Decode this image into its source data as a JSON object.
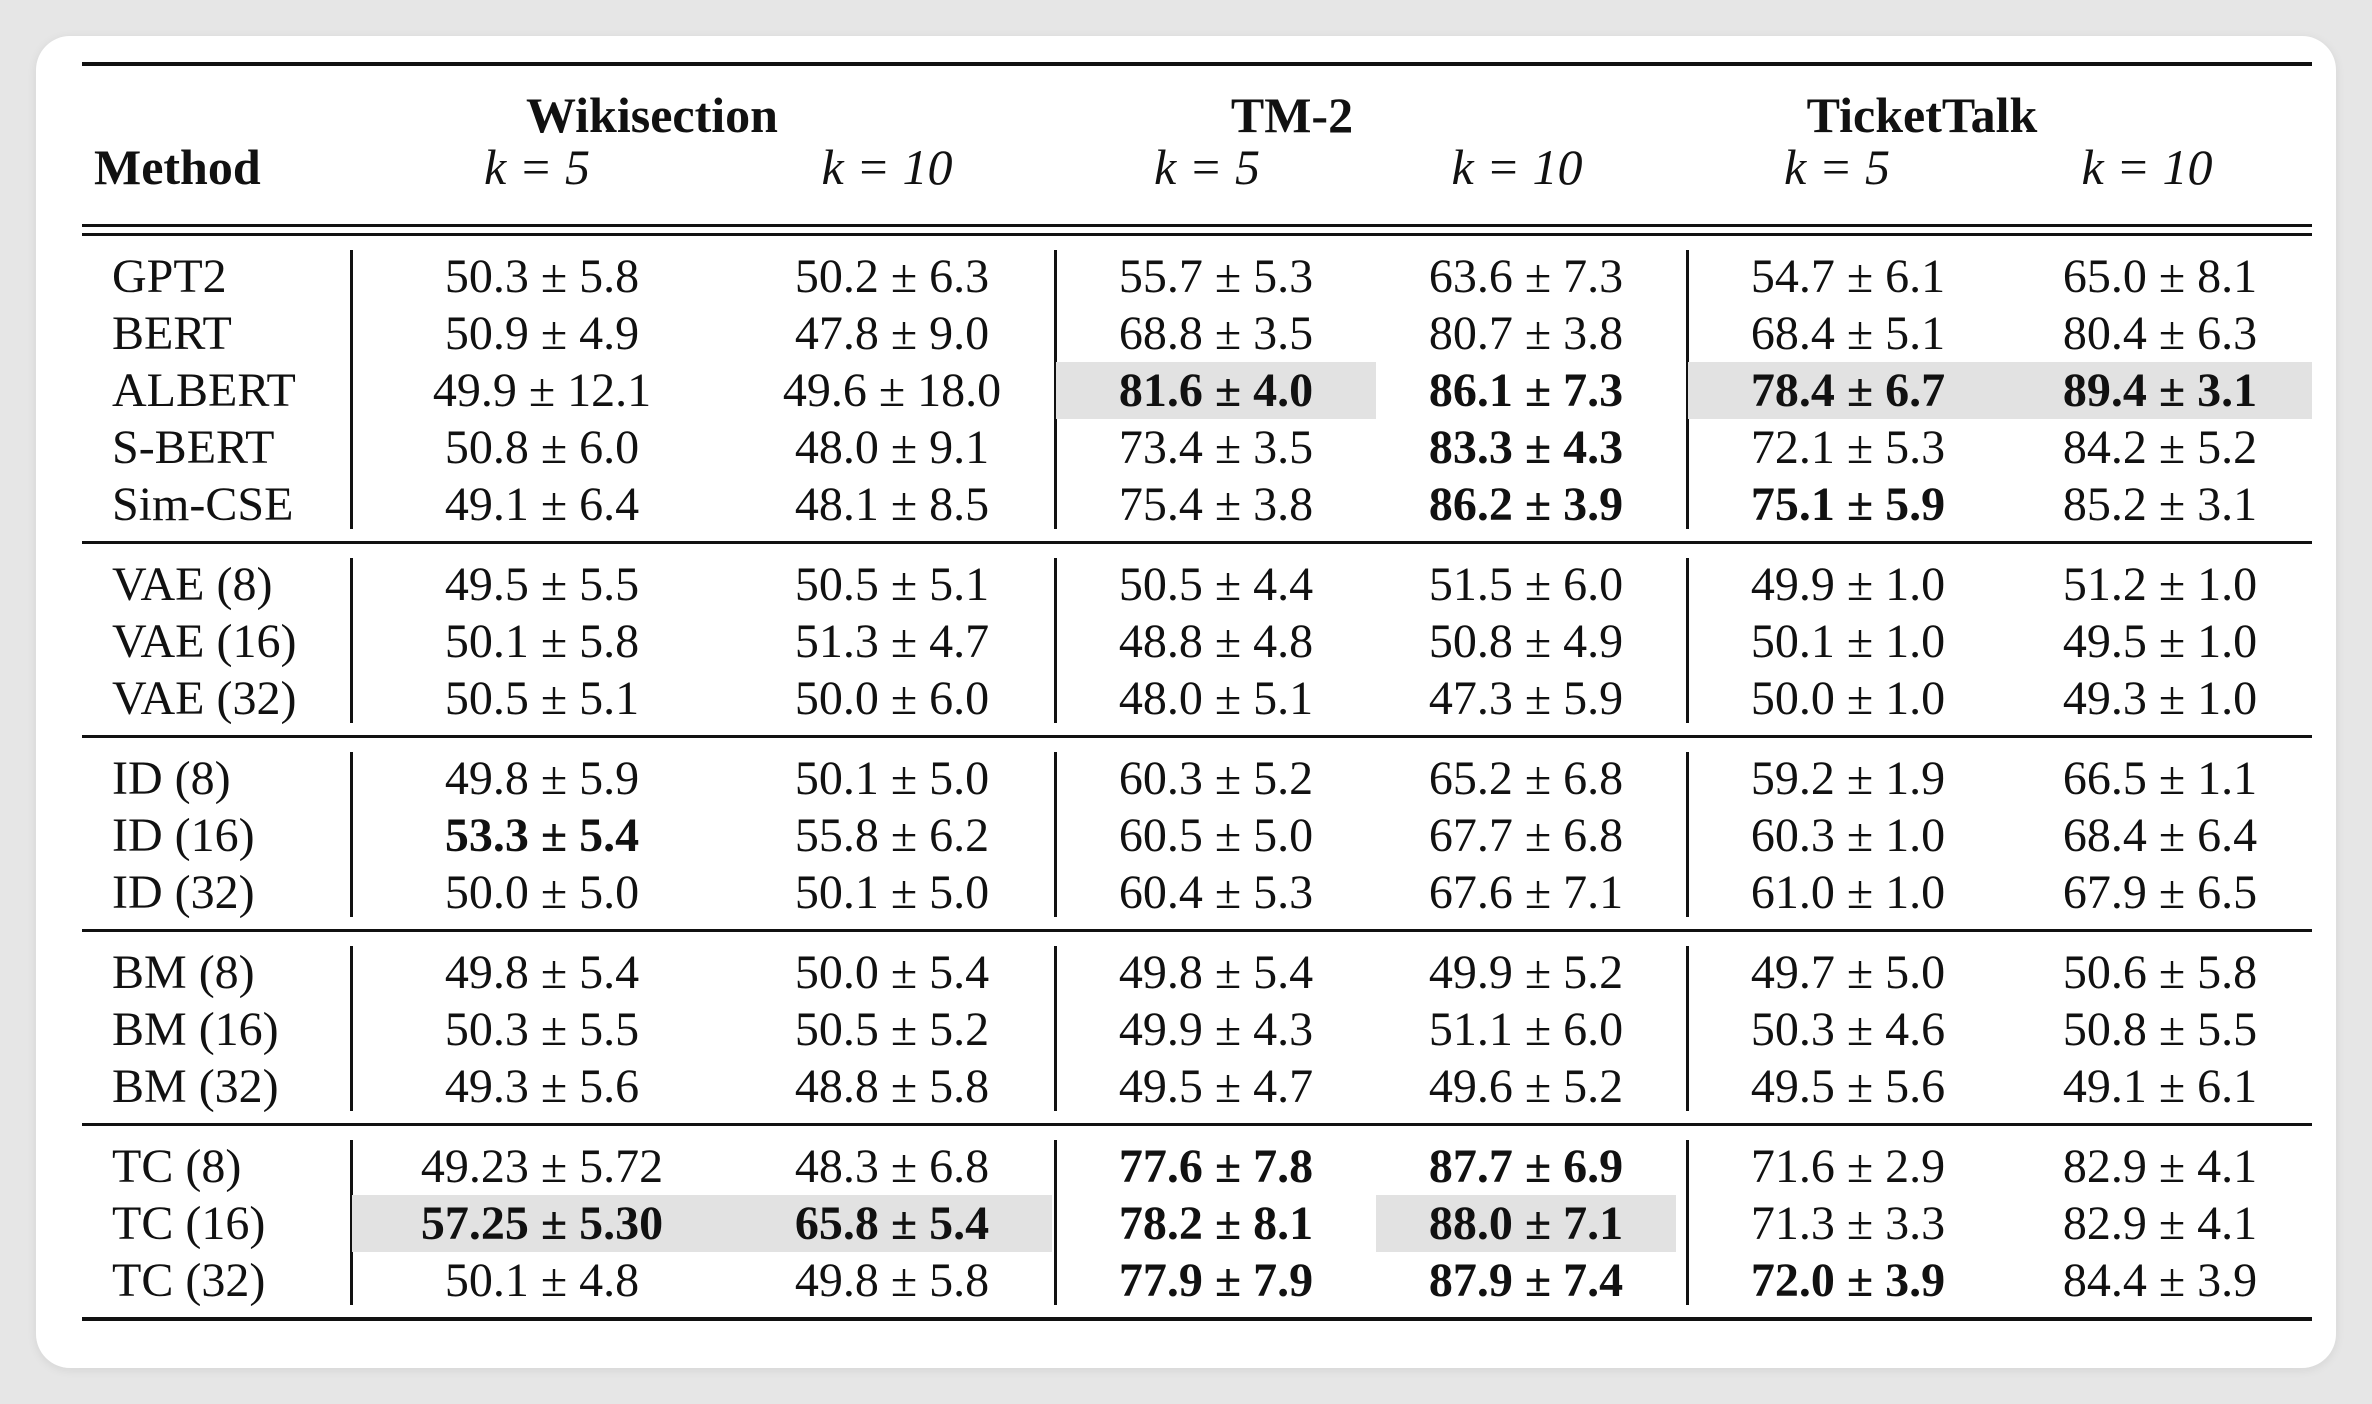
{
  "header": {
    "method_label": "Method",
    "datasets": [
      "Wikisection",
      "TM-2",
      "TicketTalk"
    ],
    "k_labels": [
      "k = 5",
      "k = 10",
      "k = 5",
      "k = 10",
      "k = 5",
      "k = 10"
    ]
  },
  "groups": [
    {
      "rows": [
        {
          "method": "GPT2",
          "cells": [
            {
              "v": "50.3 ± 5.8",
              "b": false,
              "hl": false
            },
            {
              "v": "50.2 ± 6.3",
              "b": false,
              "hl": false
            },
            {
              "v": "55.7 ± 5.3",
              "b": false,
              "hl": false
            },
            {
              "v": "63.6 ± 7.3",
              "b": false,
              "hl": false
            },
            {
              "v": "54.7 ± 6.1",
              "b": false,
              "hl": false
            },
            {
              "v": "65.0 ± 8.1",
              "b": false,
              "hl": false
            }
          ]
        },
        {
          "method": "BERT",
          "cells": [
            {
              "v": "50.9 ± 4.9",
              "b": false,
              "hl": false
            },
            {
              "v": "47.8 ± 9.0",
              "b": false,
              "hl": false
            },
            {
              "v": "68.8 ± 3.5",
              "b": false,
              "hl": false
            },
            {
              "v": "80.7 ± 3.8",
              "b": false,
              "hl": false
            },
            {
              "v": "68.4 ± 5.1",
              "b": false,
              "hl": false
            },
            {
              "v": "80.4 ± 6.3",
              "b": false,
              "hl": false
            }
          ]
        },
        {
          "method": "ALBERT",
          "cells": [
            {
              "v": "49.9 ± 12.1",
              "b": false,
              "hl": false
            },
            {
              "v": "49.6 ± 18.0",
              "b": false,
              "hl": false
            },
            {
              "v": "81.6 ± 4.0",
              "b": true,
              "hl": true
            },
            {
              "v": "86.1 ± 7.3",
              "b": true,
              "hl": false
            },
            {
              "v": "78.4 ± 6.7",
              "b": true,
              "hl": true
            },
            {
              "v": "89.4 ± 3.1",
              "b": true,
              "hl": true
            }
          ]
        },
        {
          "method": "S-BERT",
          "cells": [
            {
              "v": "50.8 ± 6.0",
              "b": false,
              "hl": false
            },
            {
              "v": "48.0 ± 9.1",
              "b": false,
              "hl": false
            },
            {
              "v": "73.4 ± 3.5",
              "b": false,
              "hl": false
            },
            {
              "v": "83.3 ± 4.3",
              "b": true,
              "hl": false
            },
            {
              "v": "72.1 ± 5.3",
              "b": false,
              "hl": false
            },
            {
              "v": "84.2 ± 5.2",
              "b": false,
              "hl": false
            }
          ]
        },
        {
          "method": "Sim-CSE",
          "cells": [
            {
              "v": "49.1 ± 6.4",
              "b": false,
              "hl": false
            },
            {
              "v": "48.1 ± 8.5",
              "b": false,
              "hl": false
            },
            {
              "v": "75.4 ± 3.8",
              "b": false,
              "hl": false
            },
            {
              "v": "86.2 ± 3.9",
              "b": true,
              "hl": false
            },
            {
              "v": "75.1 ± 5.9",
              "b": true,
              "hl": false
            },
            {
              "v": "85.2 ± 3.1",
              "b": false,
              "hl": false
            }
          ]
        }
      ]
    },
    {
      "rows": [
        {
          "method": "VAE (8)",
          "cells": [
            {
              "v": "49.5 ± 5.5",
              "b": false,
              "hl": false
            },
            {
              "v": "50.5 ± 5.1",
              "b": false,
              "hl": false
            },
            {
              "v": "50.5 ± 4.4",
              "b": false,
              "hl": false
            },
            {
              "v": "51.5 ± 6.0",
              "b": false,
              "hl": false
            },
            {
              "v": "49.9 ± 1.0",
              "b": false,
              "hl": false
            },
            {
              "v": "51.2 ± 1.0",
              "b": false,
              "hl": false
            }
          ]
        },
        {
          "method": "VAE (16)",
          "cells": [
            {
              "v": "50.1 ± 5.8",
              "b": false,
              "hl": false
            },
            {
              "v": "51.3 ± 4.7",
              "b": false,
              "hl": false
            },
            {
              "v": "48.8 ± 4.8",
              "b": false,
              "hl": false
            },
            {
              "v": "50.8 ± 4.9",
              "b": false,
              "hl": false
            },
            {
              "v": "50.1 ± 1.0",
              "b": false,
              "hl": false
            },
            {
              "v": "49.5 ± 1.0",
              "b": false,
              "hl": false
            }
          ]
        },
        {
          "method": "VAE (32)",
          "cells": [
            {
              "v": "50.5 ± 5.1",
              "b": false,
              "hl": false
            },
            {
              "v": "50.0 ± 6.0",
              "b": false,
              "hl": false
            },
            {
              "v": "48.0 ± 5.1",
              "b": false,
              "hl": false
            },
            {
              "v": "47.3 ± 5.9",
              "b": false,
              "hl": false
            },
            {
              "v": "50.0 ± 1.0",
              "b": false,
              "hl": false
            },
            {
              "v": "49.3 ± 1.0",
              "b": false,
              "hl": false
            }
          ]
        }
      ]
    },
    {
      "rows": [
        {
          "method": "ID (8)",
          "cells": [
            {
              "v": "49.8 ± 5.9",
              "b": false,
              "hl": false
            },
            {
              "v": "50.1 ± 5.0",
              "b": false,
              "hl": false
            },
            {
              "v": "60.3 ± 5.2",
              "b": false,
              "hl": false
            },
            {
              "v": "65.2 ± 6.8",
              "b": false,
              "hl": false
            },
            {
              "v": "59.2 ± 1.9",
              "b": false,
              "hl": false
            },
            {
              "v": "66.5 ± 1.1",
              "b": false,
              "hl": false
            }
          ]
        },
        {
          "method": "ID (16)",
          "cells": [
            {
              "v": "53.3 ± 5.4",
              "b": true,
              "hl": false
            },
            {
              "v": "55.8 ± 6.2",
              "b": false,
              "hl": false
            },
            {
              "v": "60.5 ± 5.0",
              "b": false,
              "hl": false
            },
            {
              "v": "67.7 ± 6.8",
              "b": false,
              "hl": false
            },
            {
              "v": "60.3 ± 1.0",
              "b": false,
              "hl": false
            },
            {
              "v": "68.4 ± 6.4",
              "b": false,
              "hl": false
            }
          ]
        },
        {
          "method": "ID (32)",
          "cells": [
            {
              "v": "50.0 ± 5.0",
              "b": false,
              "hl": false
            },
            {
              "v": "50.1 ± 5.0",
              "b": false,
              "hl": false
            },
            {
              "v": "60.4 ± 5.3",
              "b": false,
              "hl": false
            },
            {
              "v": "67.6 ± 7.1",
              "b": false,
              "hl": false
            },
            {
              "v": "61.0 ± 1.0",
              "b": false,
              "hl": false
            },
            {
              "v": "67.9 ± 6.5",
              "b": false,
              "hl": false
            }
          ]
        }
      ]
    },
    {
      "rows": [
        {
          "method": "BM (8)",
          "cells": [
            {
              "v": "49.8 ± 5.4",
              "b": false,
              "hl": false
            },
            {
              "v": "50.0 ± 5.4",
              "b": false,
              "hl": false
            },
            {
              "v": "49.8 ± 5.4",
              "b": false,
              "hl": false
            },
            {
              "v": "49.9 ± 5.2",
              "b": false,
              "hl": false
            },
            {
              "v": "49.7 ± 5.0",
              "b": false,
              "hl": false
            },
            {
              "v": "50.6 ± 5.8",
              "b": false,
              "hl": false
            }
          ]
        },
        {
          "method": "BM (16)",
          "cells": [
            {
              "v": "50.3 ± 5.5",
              "b": false,
              "hl": false
            },
            {
              "v": "50.5 ± 5.2",
              "b": false,
              "hl": false
            },
            {
              "v": "49.9 ± 4.3",
              "b": false,
              "hl": false
            },
            {
              "v": "51.1 ± 6.0",
              "b": false,
              "hl": false
            },
            {
              "v": "50.3 ± 4.6",
              "b": false,
              "hl": false
            },
            {
              "v": "50.8 ± 5.5",
              "b": false,
              "hl": false
            }
          ]
        },
        {
          "method": "BM (32)",
          "cells": [
            {
              "v": "49.3 ± 5.6",
              "b": false,
              "hl": false
            },
            {
              "v": "48.8 ± 5.8",
              "b": false,
              "hl": false
            },
            {
              "v": "49.5 ± 4.7",
              "b": false,
              "hl": false
            },
            {
              "v": "49.6 ± 5.2",
              "b": false,
              "hl": false
            },
            {
              "v": "49.5 ± 5.6",
              "b": false,
              "hl": false
            },
            {
              "v": "49.1 ± 6.1",
              "b": false,
              "hl": false
            }
          ]
        }
      ]
    },
    {
      "rows": [
        {
          "method": "TC (8)",
          "cells": [
            {
              "v": "49.23 ± 5.72",
              "b": false,
              "hl": false
            },
            {
              "v": "48.3 ± 6.8",
              "b": false,
              "hl": false
            },
            {
              "v": "77.6 ± 7.8",
              "b": true,
              "hl": false
            },
            {
              "v": "87.7 ± 6.9",
              "b": true,
              "hl": false
            },
            {
              "v": "71.6 ± 2.9",
              "b": false,
              "hl": false
            },
            {
              "v": "82.9 ± 4.1",
              "b": false,
              "hl": false
            }
          ]
        },
        {
          "method": "TC (16)",
          "cells": [
            {
              "v": "57.25 ± 5.30",
              "b": true,
              "hl": true
            },
            {
              "v": "65.8 ± 5.4",
              "b": true,
              "hl": true
            },
            {
              "v": "78.2 ± 8.1",
              "b": true,
              "hl": false
            },
            {
              "v": "88.0 ± 7.1",
              "b": true,
              "hl": true
            },
            {
              "v": "71.3 ± 3.3",
              "b": false,
              "hl": false
            },
            {
              "v": "82.9 ± 4.1",
              "b": false,
              "hl": false
            }
          ]
        },
        {
          "method": "TC (32)",
          "cells": [
            {
              "v": "50.1 ± 4.8",
              "b": false,
              "hl": false
            },
            {
              "v": "49.8 ± 5.8",
              "b": false,
              "hl": false
            },
            {
              "v": "77.9 ± 7.9",
              "b": true,
              "hl": false
            },
            {
              "v": "87.9 ± 7.4",
              "b": true,
              "hl": false
            },
            {
              "v": "72.0 ± 3.9",
              "b": true,
              "hl": false
            },
            {
              "v": "84.4 ± 3.9",
              "b": false,
              "hl": false
            }
          ]
        }
      ]
    }
  ]
}
